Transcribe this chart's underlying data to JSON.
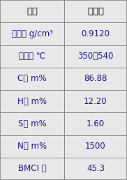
{
  "title_col1": "项目",
  "title_col2": "原料油",
  "rows": [
    [
      "密度， g/cm³",
      "0.9120"
    ],
    [
      "馏程， ℃",
      "350～540"
    ],
    [
      "C， m%",
      "86.88"
    ],
    [
      "H， m%",
      "12.20"
    ],
    [
      "S， m%",
      "1.60"
    ],
    [
      "N， m%",
      "1500"
    ],
    [
      "BMCI 値",
      "45.3"
    ]
  ],
  "bg_color": "#d8d8d8",
  "cell_bg": "#e8e8e8",
  "border_color": "#888888",
  "text_color": "#1a1a9c",
  "header_text_color": "#000000",
  "col_split": 0.505,
  "font_size": 8.5,
  "header_font_size": 9.5
}
